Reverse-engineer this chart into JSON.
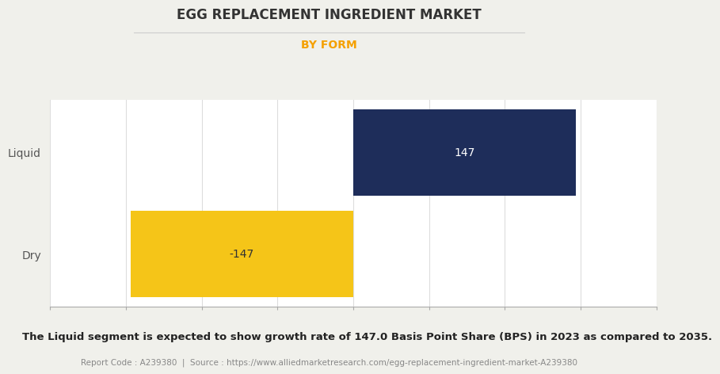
{
  "title": "EGG REPLACEMENT INGREDIENT MARKET",
  "subtitle": "BY FORM",
  "categories": [
    "Dry",
    "Liquid"
  ],
  "values": [
    -147,
    147
  ],
  "bar_colors": [
    "#f5c518",
    "#1e2d5a"
  ],
  "bar_label_colors": [
    "#333333",
    "#ffffff"
  ],
  "xlim": [
    -200,
    200
  ],
  "background_color": "#f0f0eb",
  "plot_bg_color": "#ffffff",
  "title_color": "#333333",
  "subtitle_color": "#f5a000",
  "footnote": "The Liquid segment is expected to show growth rate of 147.0 Basis Point Share (BPS) in 2023 as compared to 2035.",
  "source_text": "Report Code : A239380  |  Source : https://www.alliedmarketresearch.com/egg-replacement-ingredient-market-A239380",
  "title_fontsize": 12,
  "subtitle_fontsize": 10,
  "label_fontsize": 10,
  "tick_fontsize": 9,
  "footnote_fontsize": 9.5,
  "source_fontsize": 7.5,
  "bar_height": 0.85
}
